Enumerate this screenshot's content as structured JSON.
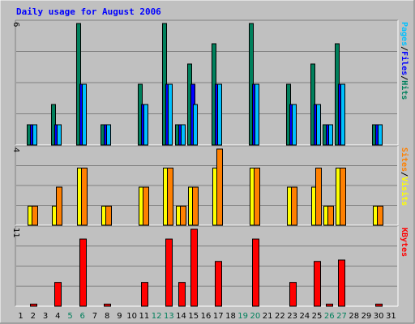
{
  "chart_data": {
    "type": "bar",
    "title": "Daily usage for August 2006",
    "days": [
      "1",
      "2",
      "3",
      "4",
      "5",
      "6",
      "7",
      "8",
      "9",
      "10",
      "11",
      "12",
      "13",
      "14",
      "15",
      "16",
      "17",
      "18",
      "19",
      "20",
      "21",
      "22",
      "23",
      "24",
      "25",
      "26",
      "27",
      "28",
      "29",
      "30",
      "31"
    ],
    "weekend_days": [
      5,
      6,
      12,
      13,
      19,
      20,
      26,
      27
    ],
    "colors": {
      "title": "#0000ff",
      "weekend": "#00805c",
      "weekday": "#000000",
      "hits": "#00805c",
      "files": "#0000ff",
      "pages": "#00c0ff",
      "visits": "#ffff00",
      "sites": "#ff8000",
      "kbytes": "#ff0000"
    },
    "panels": [
      {
        "id": "hits-files-pages",
        "ymax": 6,
        "ymax_label": "6",
        "side_labels": [
          {
            "text": "Pages",
            "color": "#00c0ff"
          },
          {
            "text": "/",
            "color": "#000000"
          },
          {
            "text": "Files",
            "color": "#0000ff"
          },
          {
            "text": "/",
            "color": "#000000"
          },
          {
            "text": "Hits",
            "color": "#00805c"
          }
        ],
        "series": [
          {
            "name": "Hits",
            "color": "#00805c",
            "values": [
              0,
              1,
              0,
              2,
              0,
              6,
              0,
              1,
              0,
              0,
              3,
              0,
              6,
              1,
              4,
              0,
              5,
              0,
              0,
              6,
              0,
              0,
              3,
              0,
              4,
              1,
              5,
              0,
              0,
              1,
              0
            ]
          },
          {
            "name": "Files",
            "color": "#0000ff",
            "values": [
              0,
              1,
              0,
              1,
              0,
              3,
              0,
              1,
              0,
              0,
              2,
              0,
              3,
              1,
              3,
              0,
              3,
              0,
              0,
              3,
              0,
              0,
              2,
              0,
              2,
              1,
              3,
              0,
              0,
              1,
              0
            ]
          },
          {
            "name": "Pages",
            "color": "#00c0ff",
            "values": [
              0,
              1,
              0,
              1,
              0,
              3,
              0,
              1,
              0,
              0,
              2,
              0,
              3,
              1,
              2,
              0,
              3,
              0,
              0,
              3,
              0,
              0,
              2,
              0,
              2,
              1,
              3,
              0,
              0,
              1,
              0
            ]
          }
        ]
      },
      {
        "id": "sites-visits",
        "ymax": 4,
        "ymax_label": "4",
        "side_labels": [
          {
            "text": "Sites",
            "color": "#ff8000"
          },
          {
            "text": "/",
            "color": "#000000"
          },
          {
            "text": "Visits",
            "color": "#ffff00"
          }
        ],
        "series": [
          {
            "name": "Visits",
            "color": "#ffff00",
            "values": [
              0,
              1,
              0,
              1,
              0,
              3,
              0,
              1,
              0,
              0,
              2,
              0,
              3,
              1,
              2,
              0,
              3,
              0,
              0,
              3,
              0,
              0,
              2,
              0,
              2,
              1,
              3,
              0,
              0,
              1,
              0
            ]
          },
          {
            "name": "Sites",
            "color": "#ff8000",
            "values": [
              0,
              1,
              0,
              2,
              0,
              3,
              0,
              1,
              0,
              0,
              2,
              0,
              3,
              1,
              2,
              0,
              4,
              0,
              0,
              3,
              0,
              0,
              2,
              0,
              3,
              1,
              3,
              0,
              0,
              1,
              0
            ]
          }
        ]
      },
      {
        "id": "kbytes",
        "ymax": 11,
        "ymax_label": "11",
        "side_labels": [
          {
            "text": "KBytes",
            "color": "#ff0000"
          }
        ],
        "series": [
          {
            "name": "KBytes",
            "color": "#ff0000",
            "values": [
              0,
              0.3,
              0,
              3.4,
              0,
              9.6,
              0,
              0.3,
              0,
              0,
              3.4,
              0,
              9.6,
              3.4,
              11,
              0,
              6.4,
              0,
              0,
              9.6,
              0,
              0,
              3.4,
              0,
              6.4,
              0.3,
              6.6,
              0,
              0,
              0.3,
              0
            ]
          }
        ]
      }
    ]
  }
}
